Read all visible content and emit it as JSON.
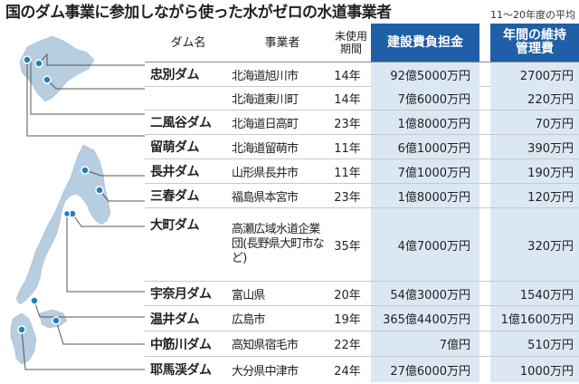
{
  "title": "国のダム事業に参加しながら使った水がゼロの水道事業者",
  "note": "11〜20年度の平均",
  "headers": {
    "dam": "ダム名",
    "operator": "事業者",
    "unused_years": "未使用期間",
    "construction_cost": "建設費負担金",
    "annual_maintenance": "年間の維持管理費"
  },
  "rows": [
    {
      "dam": "忠別ダム",
      "operator": "北海道旭川市",
      "years": "14年",
      "cost": "92億5000万円",
      "maintenance": "2700万円"
    },
    {
      "dam": "",
      "operator": "北海道東川町",
      "years": "14年",
      "cost": "7億6000万円",
      "maintenance": "220万円"
    },
    {
      "dam": "二風谷ダム",
      "operator": "北海道日高町",
      "years": "23年",
      "cost": "1億8000万円",
      "maintenance": "70万円"
    },
    {
      "dam": "留萌ダム",
      "operator": "北海道留萌市",
      "years": "11年",
      "cost": "6億1000万円",
      "maintenance": "390万円"
    },
    {
      "dam": "長井ダム",
      "operator": "山形県長井市",
      "years": "11年",
      "cost": "7億1000万円",
      "maintenance": "190万円"
    },
    {
      "dam": "三春ダム",
      "operator": "福島県本宮市",
      "years": "23年",
      "cost": "1億8000万円",
      "maintenance": "120万円"
    },
    {
      "dam": "大町ダム",
      "operator": "高瀬広域水道企業団(長野県大町市など)",
      "years": "35年",
      "cost": "4億7000万円",
      "maintenance": "320万円"
    },
    {
      "dam": "宇奈月ダム",
      "operator": "富山県",
      "years": "20年",
      "cost": "54億3000万円",
      "maintenance": "1540万円"
    },
    {
      "dam": "温井ダム",
      "operator": "広島市",
      "years": "19年",
      "cost": "365億4400万円",
      "maintenance": "1億1600万円"
    },
    {
      "dam": "中筋川ダム",
      "operator": "高知県宿毛市",
      "years": "22年",
      "cost": "7億円",
      "maintenance": "510万円"
    },
    {
      "dam": "耶馬渓ダム",
      "operator": "大分県中津市",
      "years": "24年",
      "cost": "27億6000万円",
      "maintenance": "1000万円"
    }
  ],
  "colors": {
    "header_blue": "#1f5fa8",
    "cell_tint": "#dce7f4",
    "map_fill": "#b7cde0",
    "marker": "#1f7fc1"
  }
}
